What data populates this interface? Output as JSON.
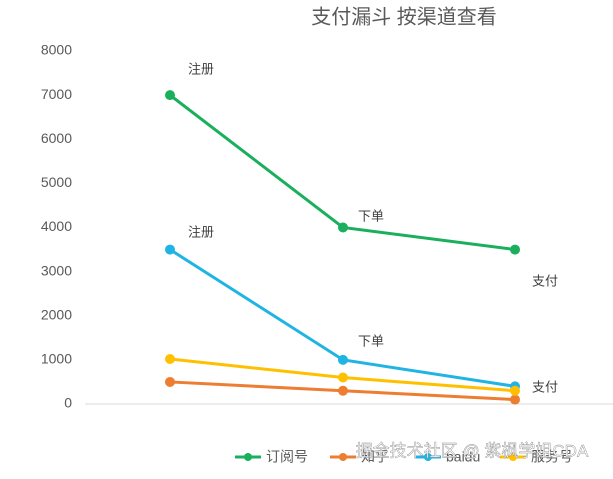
{
  "chart_data": {
    "type": "line",
    "title": "支付漏斗 按渠道查看",
    "categories": [
      null,
      null,
      null
    ],
    "series": [
      {
        "name": "订阅号",
        "color": "#1aaf5d",
        "values": [
          7000,
          4000,
          3500
        ]
      },
      {
        "name": "知乎",
        "color": "#ed7d31",
        "values": [
          500,
          300,
          100
        ]
      },
      {
        "name": "baidu",
        "color": "#1fb4e3",
        "values": [
          3500,
          1000,
          400
        ]
      },
      {
        "name": "服务号",
        "color": "#ffc000",
        "values": [
          1020,
          600,
          300
        ]
      }
    ],
    "ylim": [
      0,
      8000
    ],
    "yticks": [
      0,
      1000,
      2000,
      3000,
      4000,
      5000,
      6000,
      7000,
      8000
    ],
    "annotations": [
      "注册",
      "下单",
      "支付",
      "注册",
      "下单",
      "支付"
    ],
    "watermark": "掘金技术社区 @ 紫枫学姐CDA"
  }
}
